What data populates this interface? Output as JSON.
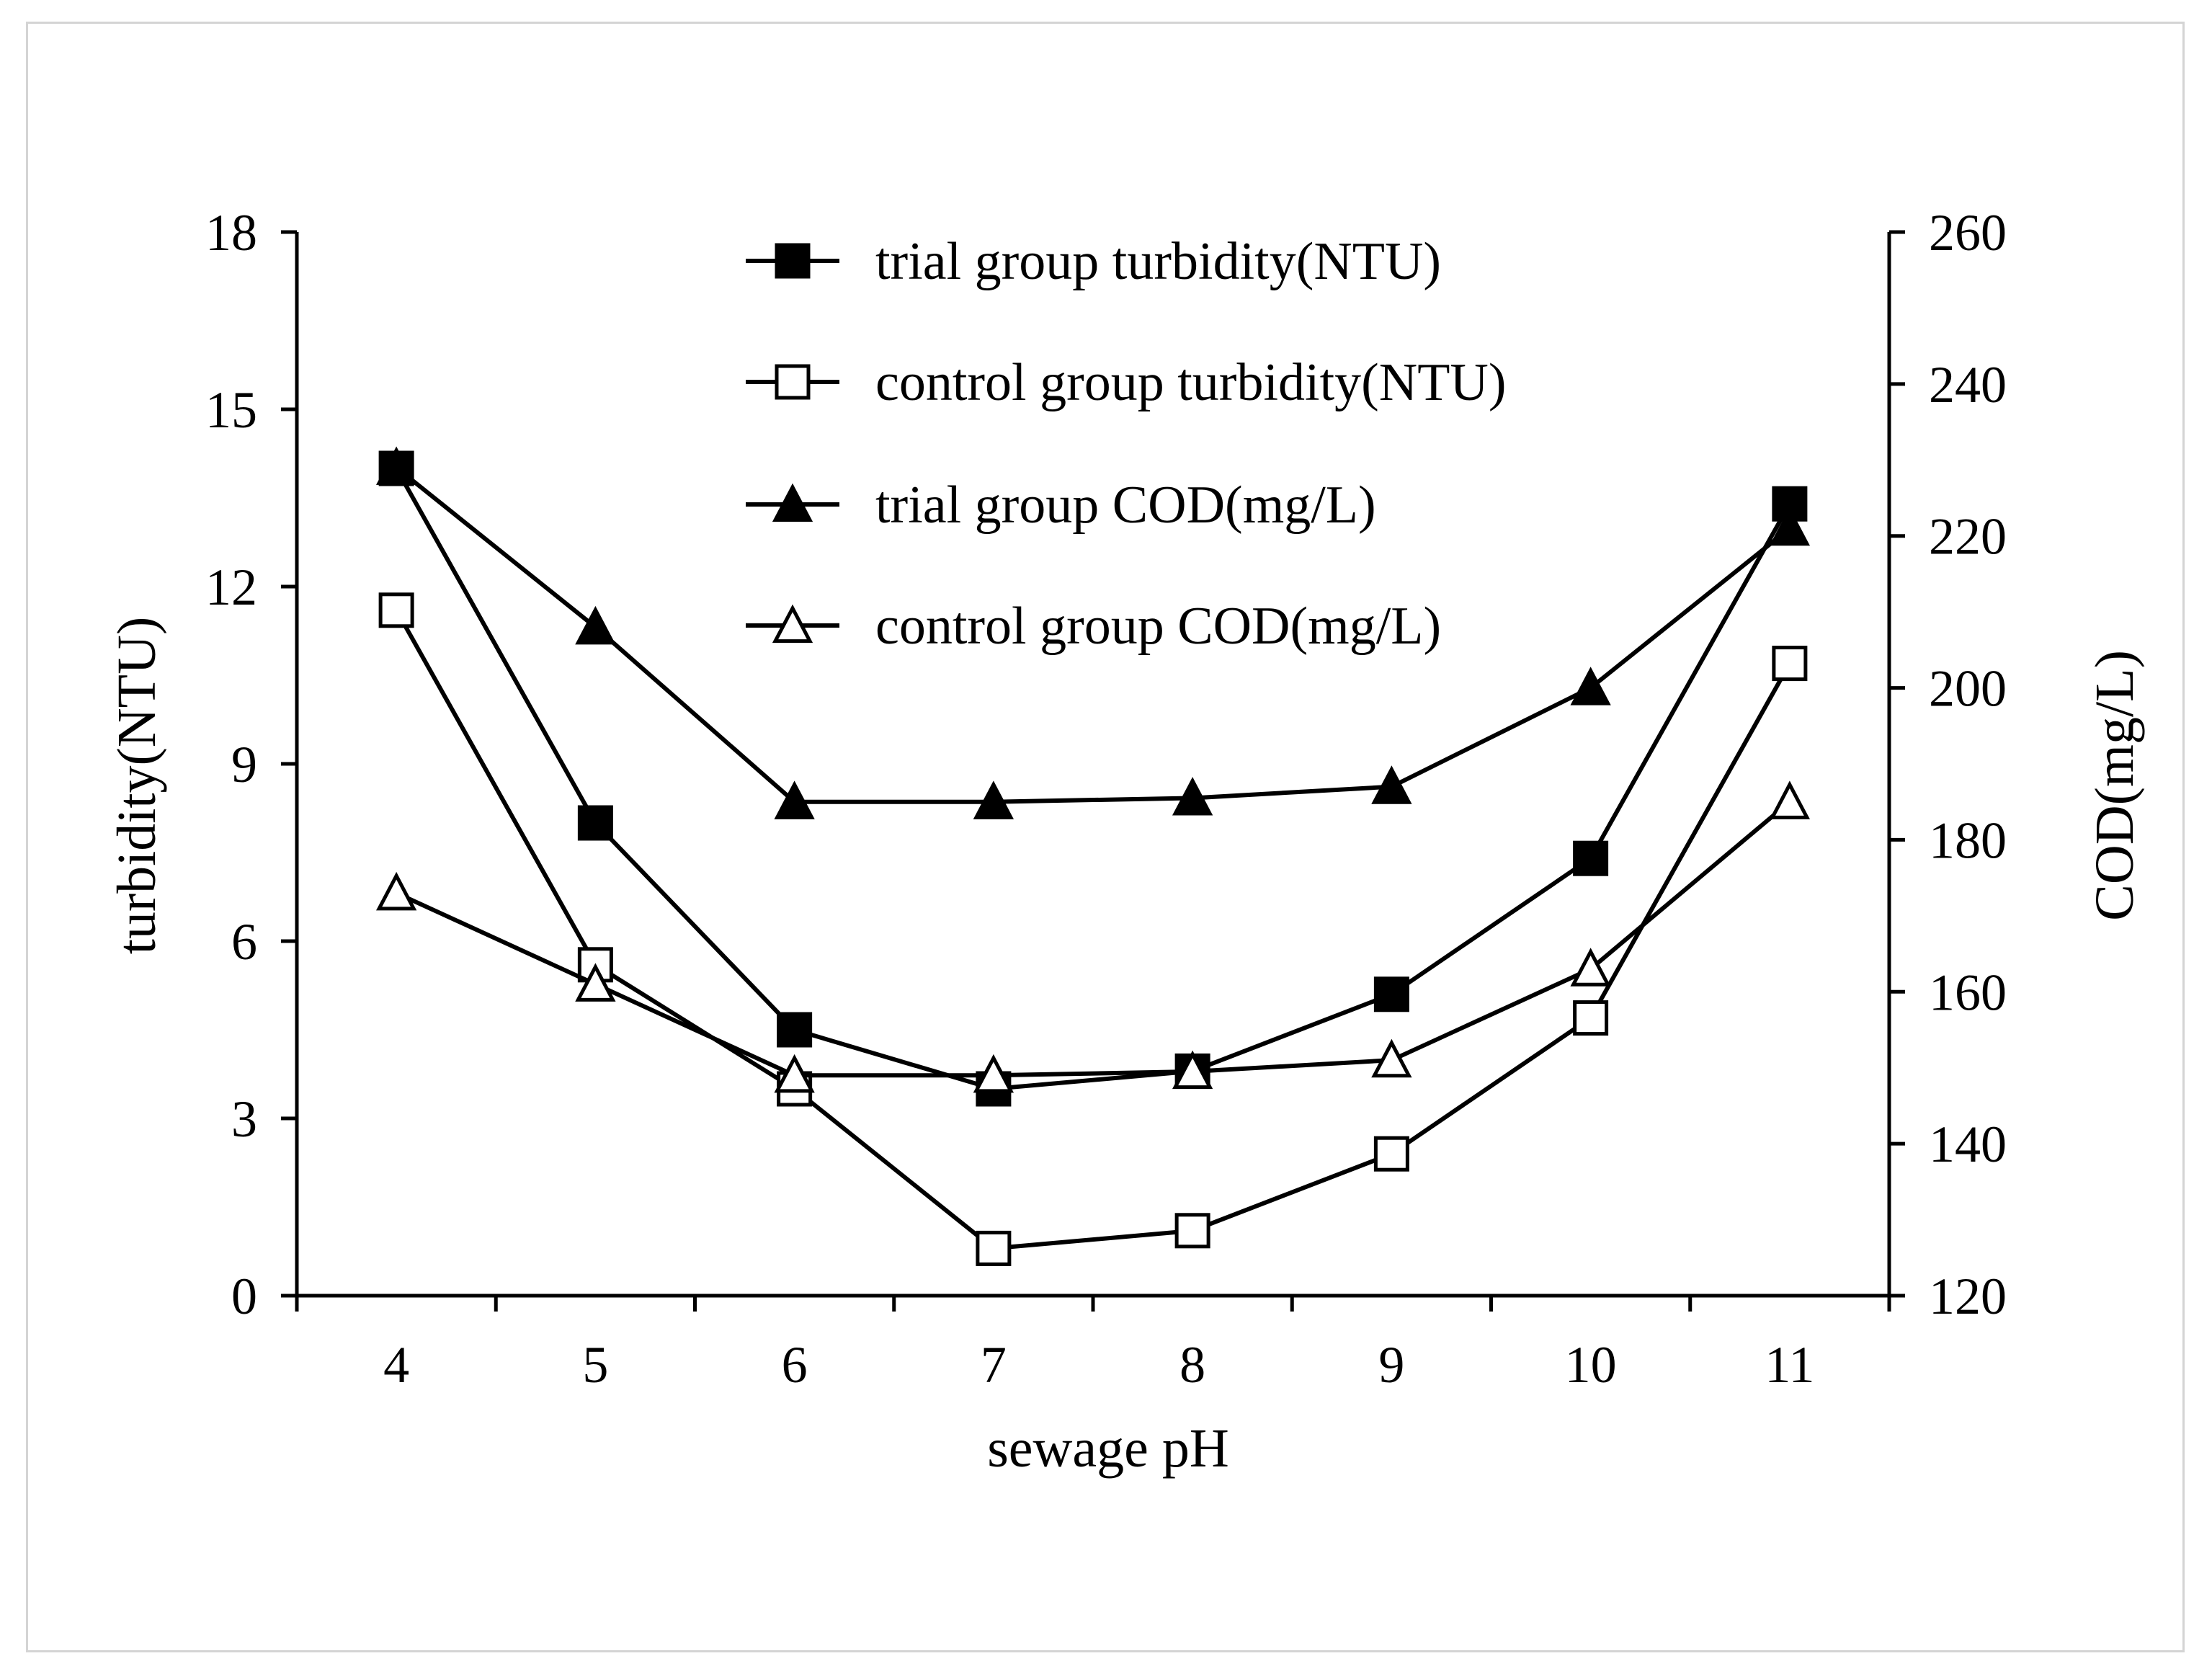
{
  "chart_data": {
    "type": "line",
    "title": "",
    "xlabel": "sewage pH",
    "ylabel": "turbidity(NTU)",
    "y2label": "COD(mg/L)",
    "categories": [
      "4",
      "5",
      "6",
      "7",
      "8",
      "9",
      "10",
      "11"
    ],
    "x": [
      4,
      5,
      6,
      7,
      8,
      9,
      10,
      11
    ],
    "ylim": [
      0,
      18
    ],
    "yticks": [
      "0",
      "3",
      "6",
      "9",
      "12",
      "15",
      "18"
    ],
    "y2lim": [
      120,
      260
    ],
    "y2ticks": [
      "120",
      "140",
      "160",
      "180",
      "200",
      "220",
      "240",
      "260"
    ],
    "legend_position": "top-center",
    "grid": false,
    "series": [
      {
        "name": "trial group turbidity(NTU)",
        "axis": "left",
        "marker": "square-filled",
        "values": [
          14.0,
          8.0,
          4.5,
          3.5,
          3.8,
          5.1,
          7.4,
          13.4
        ]
      },
      {
        "name": "control group turbidity(NTU)",
        "axis": "left",
        "marker": "square-open",
        "values": [
          11.6,
          5.6,
          3.5,
          0.8,
          1.1,
          2.4,
          4.7,
          10.7
        ]
      },
      {
        "name": "trial group COD(mg/L)",
        "axis": "right",
        "marker": "triangle-filled",
        "values": [
          229,
          208,
          185,
          185,
          185.5,
          187,
          200,
          221
        ]
      },
      {
        "name": "control group COD(mg/L)",
        "axis": "right",
        "marker": "triangle-open",
        "values": [
          173,
          161,
          149,
          149,
          149.5,
          151,
          163,
          185
        ]
      }
    ]
  },
  "colors": {
    "line": "#000000",
    "frame": "#d4d4d4",
    "background": "#ffffff"
  }
}
